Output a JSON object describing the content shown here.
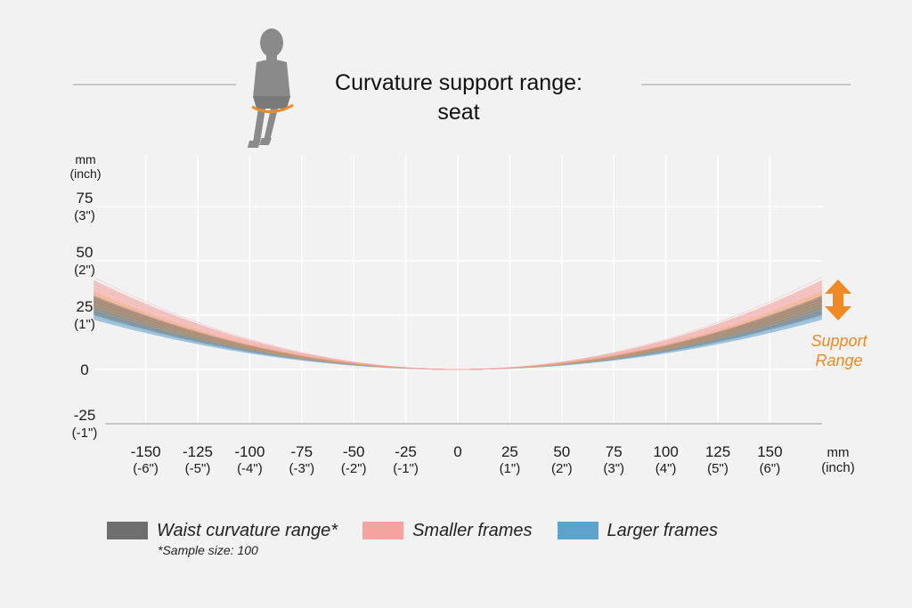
{
  "header": {
    "title_line1": "Curvature support range:",
    "title_line2": "seat"
  },
  "support_label": {
    "line1": "Support",
    "line2": "Range",
    "color": "#f08a24"
  },
  "legend": {
    "items": [
      {
        "label": "Waist curvature range*",
        "color": "#6e6e6e"
      },
      {
        "label": "Smaller frames",
        "color": "#f4a3a0"
      },
      {
        "label": "Larger frames",
        "color": "#5fa3cc"
      }
    ],
    "note": "*Sample size: 100"
  },
  "icons": {
    "figure": "seated-woman-icon",
    "arrow": "double-arrow-vertical-icon"
  },
  "chart_data": {
    "type": "line",
    "title": "Curvature support range: seat",
    "xlabel": "mm\n(inch)",
    "ylabel": "mm\n(inch)",
    "xlim": [
      -175,
      175
    ],
    "ylim": [
      -25,
      75
    ],
    "grid": true,
    "x_ticks": [
      {
        "value": -150,
        "label": "-150",
        "sub": "(-6\")"
      },
      {
        "value": -125,
        "label": "-125",
        "sub": "(-5\")"
      },
      {
        "value": -100,
        "label": "-100",
        "sub": "(-4\")"
      },
      {
        "value": -75,
        "label": "-75",
        "sub": "(-3\")"
      },
      {
        "value": -50,
        "label": "-50",
        "sub": "(-2\")"
      },
      {
        "value": -25,
        "label": "-25",
        "sub": "(-1\")"
      },
      {
        "value": 0,
        "label": "0",
        "sub": ""
      },
      {
        "value": 25,
        "label": "25",
        "sub": "(1\")"
      },
      {
        "value": 50,
        "label": "50",
        "sub": "(2\")"
      },
      {
        "value": 75,
        "label": "75",
        "sub": "(3\")"
      },
      {
        "value": 100,
        "label": "100",
        "sub": "(4\")"
      },
      {
        "value": 125,
        "label": "125",
        "sub": "(5\")"
      },
      {
        "value": 150,
        "label": "150",
        "sub": "(6\")"
      }
    ],
    "y_ticks": [
      {
        "value": 75,
        "label": "75",
        "sub": "(3\")"
      },
      {
        "value": 50,
        "label": "50",
        "sub": "(2\")"
      },
      {
        "value": 25,
        "label": "25",
        "sub": "(1\")"
      },
      {
        "value": 0,
        "label": "0",
        "sub": ""
      },
      {
        "value": -25,
        "label": "-25",
        "sub": "(-1\")"
      }
    ],
    "axis_unit_x": "mm",
    "axis_unit_x_sub": "(inch)",
    "axis_unit_y": "mm",
    "axis_unit_y_sub": "(inch)",
    "series": [
      {
        "name": "Smaller frames",
        "color": "#f4a3a0",
        "x": [
          -175,
          0,
          175
        ],
        "y_upper": [
          41,
          0,
          41
        ],
        "y_lower": [
          30,
          0,
          30
        ]
      },
      {
        "name": "Larger frames",
        "color": "#5fa3cc",
        "x": [
          -175,
          0,
          175
        ],
        "y_upper": [
          33,
          0,
          33
        ],
        "y_lower": [
          23,
          0,
          23
        ]
      },
      {
        "name": "Waist curvature range*",
        "color": "#6e6e6e",
        "x": [
          -175,
          0,
          175
        ],
        "y_upper": [
          34,
          0,
          34
        ],
        "y_lower": [
          25,
          0,
          25
        ]
      }
    ],
    "support_range": {
      "from": 25,
      "to": 42
    }
  }
}
